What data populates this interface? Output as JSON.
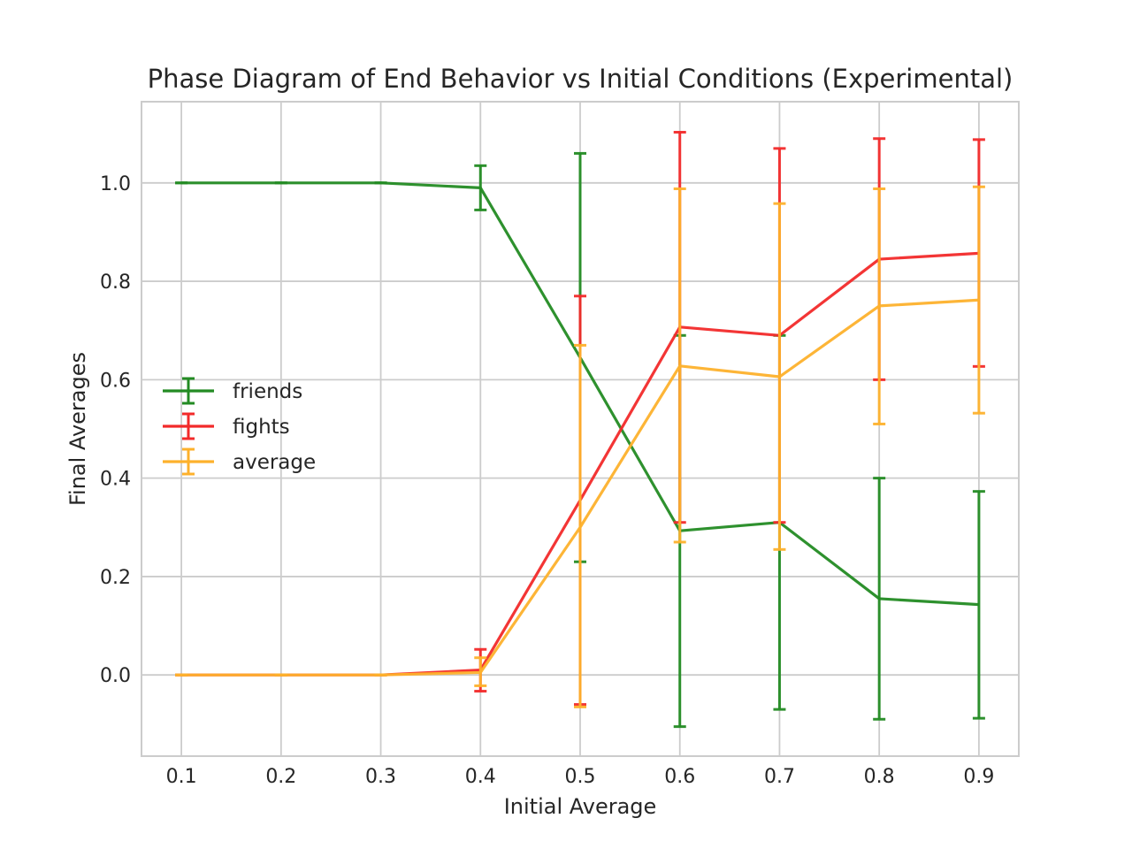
{
  "chart_data": {
    "type": "line",
    "title": "Phase Diagram of End Behavior vs Initial Conditions (Experimental)",
    "xlabel": "Initial Average",
    "ylabel": "Final Averages",
    "x": [
      0.1,
      0.2,
      0.3,
      0.4,
      0.5,
      0.6,
      0.7,
      0.8,
      0.9
    ],
    "xticks": [
      "0.1",
      "0.2",
      "0.3",
      "0.4",
      "0.5",
      "0.6",
      "0.7",
      "0.8",
      "0.9"
    ],
    "yticks": [
      "0.0",
      "0.2",
      "0.4",
      "0.6",
      "0.8",
      "1.0"
    ],
    "ytick_values": [
      0.0,
      0.2,
      0.4,
      0.6,
      0.8,
      1.0
    ],
    "xlim": [
      0.06,
      0.94
    ],
    "ylim": [
      -0.165,
      1.165
    ],
    "grid": true,
    "legend_position": "center-left",
    "series": [
      {
        "name": "friends",
        "color": "#238b23",
        "values": [
          1.0,
          1.0,
          1.0,
          0.99,
          0.645,
          0.293,
          0.31,
          0.155,
          0.143
        ],
        "err_low": [
          1.0,
          1.0,
          1.0,
          0.945,
          0.23,
          -0.105,
          -0.07,
          -0.09,
          -0.088
        ],
        "err_high": [
          1.0,
          1.0,
          1.0,
          1.035,
          1.06,
          0.69,
          0.69,
          0.4,
          0.373
        ]
      },
      {
        "name": "fights",
        "color": "#f22a2a",
        "values": [
          0.0,
          0.0,
          0.0,
          0.01,
          0.355,
          0.707,
          0.69,
          0.845,
          0.857
        ],
        "err_low": [
          0.0,
          0.0,
          0.0,
          -0.033,
          -0.06,
          0.31,
          0.31,
          0.6,
          0.627
        ],
        "err_high": [
          0.0,
          0.0,
          0.0,
          0.052,
          0.77,
          1.103,
          1.07,
          1.09,
          1.088
        ]
      },
      {
        "name": "average",
        "color": "#fdb12c",
        "values": [
          0.0,
          0.0,
          0.0,
          0.005,
          0.3,
          0.628,
          0.606,
          0.75,
          0.762
        ],
        "err_low": [
          0.0,
          0.0,
          0.0,
          -0.022,
          -0.065,
          0.27,
          0.255,
          0.51,
          0.532
        ],
        "err_high": [
          0.0,
          0.0,
          0.0,
          0.035,
          0.67,
          0.988,
          0.958,
          0.988,
          0.992
        ]
      }
    ]
  }
}
